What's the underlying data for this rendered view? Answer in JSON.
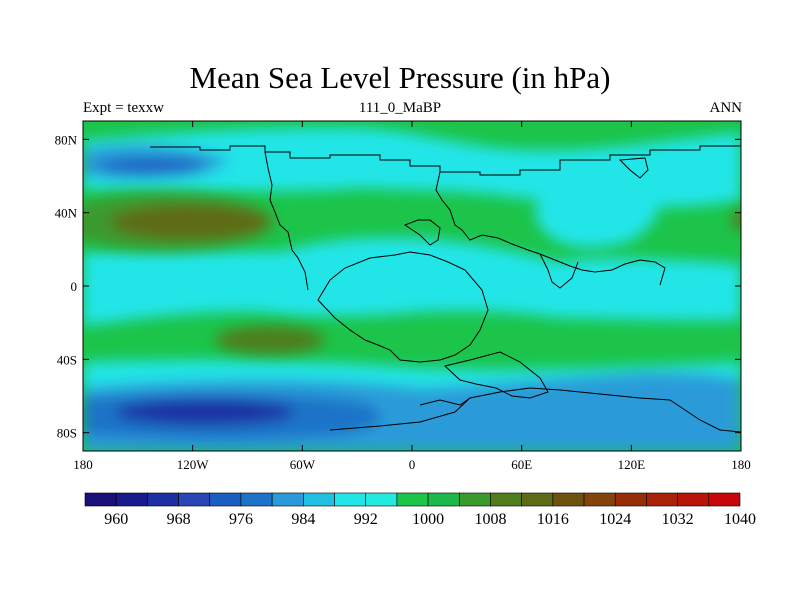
{
  "title": "Mean Sea Level Pressure (in hPa)",
  "left_subtitle": "Expt = texxw",
  "center_subtitle": "111_0_MaBP",
  "right_subtitle": "ANN",
  "map": {
    "type": "contour-map",
    "variable": "Mean Sea Level Pressure",
    "units": "hPa",
    "lon_range": [
      -180,
      180
    ],
    "lat_range": [
      -90,
      90
    ],
    "x_ticks": [
      {
        "lon": -180,
        "label": "180"
      },
      {
        "lon": -120,
        "label": "120W"
      },
      {
        "lon": -60,
        "label": "60W"
      },
      {
        "lon": 0,
        "label": "0"
      },
      {
        "lon": 60,
        "label": "60E"
      },
      {
        "lon": 120,
        "label": "120E"
      },
      {
        "lon": 180,
        "label": "180"
      }
    ],
    "y_ticks": [
      {
        "lat": 80,
        "label": "80N"
      },
      {
        "lat": 40,
        "label": "40N"
      },
      {
        "lat": 0,
        "label": "0"
      },
      {
        "lat": -40,
        "label": "40S"
      },
      {
        "lat": -80,
        "label": "80S"
      }
    ]
  },
  "colorbar": {
    "colors": [
      "#1b0f7a",
      "#1a1a8c",
      "#1d2fa2",
      "#2a45b5",
      "#1b5fc2",
      "#1e73c8",
      "#2a9bd8",
      "#22c0e0",
      "#22e5e8",
      "#22eadf",
      "#1cc44a",
      "#1db84a",
      "#3a9a2e",
      "#4f7d1c",
      "#5e6a15",
      "#6e5210",
      "#83440b",
      "#962e08",
      "#a82208",
      "#b81508",
      "#c80808"
    ],
    "tick_labels": [
      {
        "index": 1,
        "label": "960"
      },
      {
        "index": 3,
        "label": "968"
      },
      {
        "index": 5,
        "label": "976"
      },
      {
        "index": 7,
        "label": "984"
      },
      {
        "index": 9,
        "label": "992"
      },
      {
        "index": 11,
        "label": "1000"
      },
      {
        "index": 13,
        "label": "1008"
      },
      {
        "index": 15,
        "label": "1016"
      },
      {
        "index": 17,
        "label": "1024"
      },
      {
        "index": 19,
        "label": "1032"
      },
      {
        "index": 21,
        "label": "1040"
      }
    ]
  }
}
